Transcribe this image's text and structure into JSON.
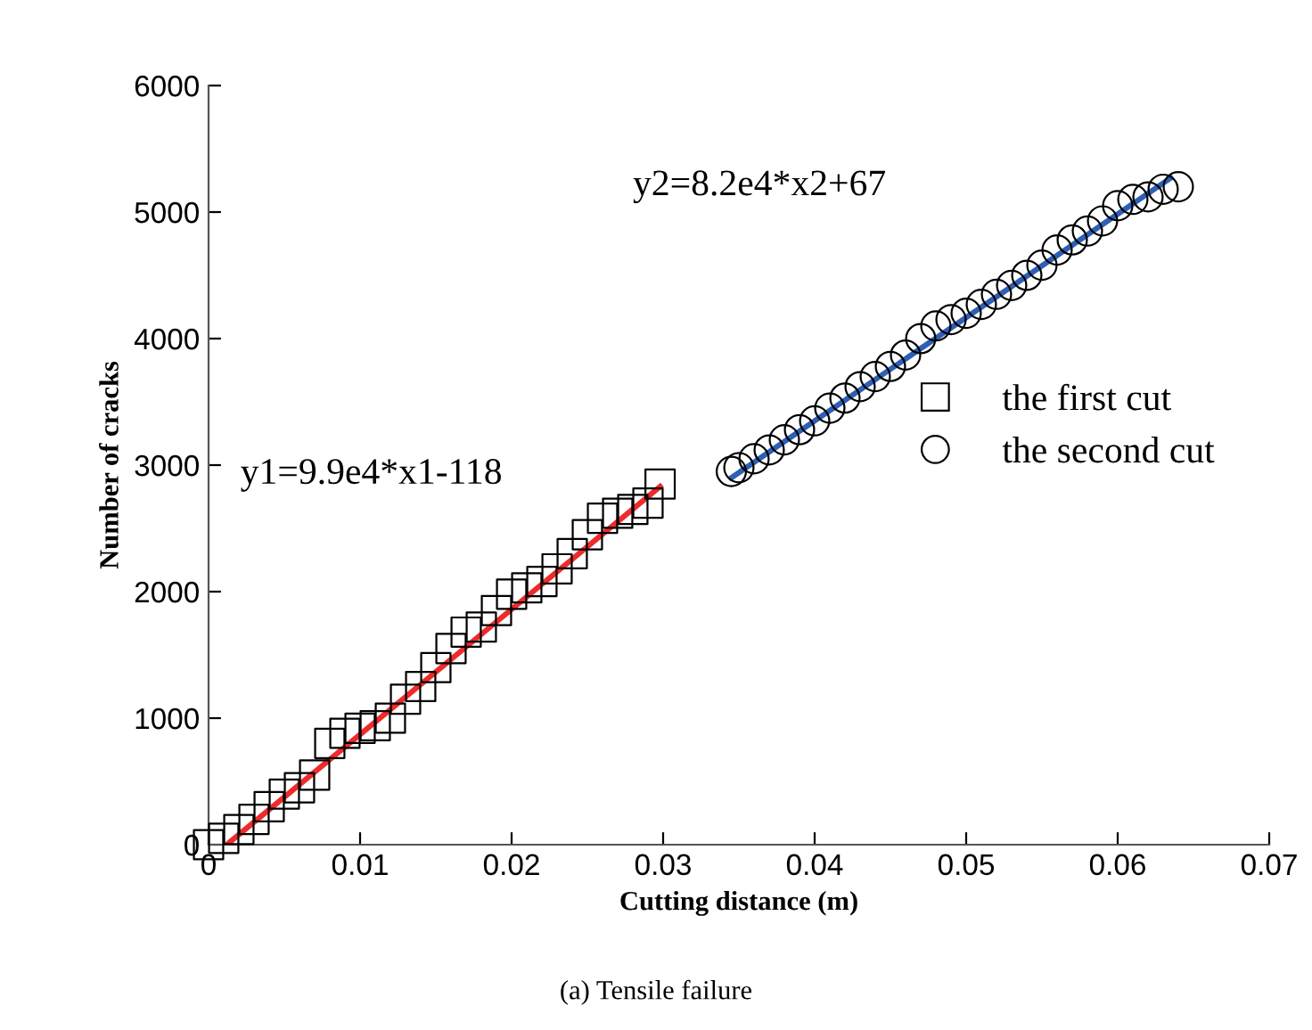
{
  "chart_data": {
    "type": "scatter",
    "xlabel": "Cutting distance (m)",
    "ylabel": "Number of cracks",
    "xlim": [
      0,
      0.07
    ],
    "ylim": [
      0,
      6000
    ],
    "xticks": [
      0,
      0.01,
      0.02,
      0.03,
      0.04,
      0.05,
      0.06,
      0.07
    ],
    "yticks": [
      0,
      1000,
      2000,
      3000,
      4000,
      5000,
      6000
    ],
    "grid": false,
    "legend": "right",
    "series": [
      {
        "name": "the first cut",
        "marker": "square",
        "color": "#000000",
        "x": [
          0,
          0.001,
          0.002,
          0.003,
          0.004,
          0.005,
          0.006,
          0.007,
          0.008,
          0.009,
          0.01,
          0.011,
          0.012,
          0.013,
          0.014,
          0.015,
          0.016,
          0.017,
          0.018,
          0.019,
          0.02,
          0.021,
          0.022,
          0.023,
          0.024,
          0.025,
          0.026,
          0.027,
          0.028,
          0.029,
          0.0298
        ],
        "values": [
          0,
          50,
          120,
          200,
          300,
          400,
          450,
          550,
          800,
          880,
          920,
          940,
          1000,
          1150,
          1250,
          1400,
          1550,
          1680,
          1720,
          1850,
          1980,
          2030,
          2080,
          2180,
          2300,
          2450,
          2580,
          2620,
          2650,
          2700,
          2850
        ]
      },
      {
        "name": "the second cut",
        "marker": "circle",
        "color": "#000000",
        "x": [
          0.0345,
          0.035,
          0.036,
          0.037,
          0.038,
          0.039,
          0.04,
          0.041,
          0.042,
          0.043,
          0.044,
          0.045,
          0.046,
          0.047,
          0.048,
          0.049,
          0.05,
          0.051,
          0.052,
          0.053,
          0.054,
          0.055,
          0.056,
          0.057,
          0.058,
          0.059,
          0.06,
          0.061,
          0.062,
          0.063,
          0.064
        ],
        "values": [
          2950,
          2980,
          3050,
          3120,
          3200,
          3280,
          3350,
          3450,
          3530,
          3620,
          3700,
          3780,
          3870,
          4000,
          4100,
          4150,
          4200,
          4270,
          4350,
          4420,
          4500,
          4580,
          4700,
          4780,
          4850,
          4930,
          5050,
          5100,
          5120,
          5180,
          5200
        ]
      },
      {
        "type": "line",
        "color": "#ee2b2b",
        "x": [
          0.0012,
          0.0298
        ],
        "values": [
          0,
          2830
        ]
      },
      {
        "type": "line",
        "color": "#2e5fb5",
        "x": [
          0.0345,
          0.0635
        ],
        "values": [
          2900,
          5270
        ]
      }
    ],
    "annotations": [
      "y1=9.9e4*x1-118",
      "y2=8.2e4*x2+67",
      "(a) Tensile failure"
    ]
  }
}
